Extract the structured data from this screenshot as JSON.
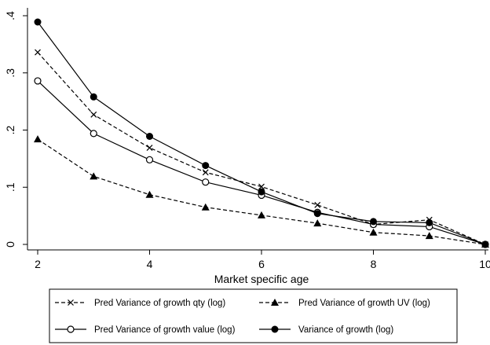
{
  "chart_data": {
    "type": "line",
    "xlabel": "Market specific age",
    "ylabel": "",
    "x": [
      2,
      3,
      4,
      5,
      6,
      7,
      8,
      9,
      10
    ],
    "xlim": [
      2,
      10
    ],
    "ylim": [
      0,
      0.4
    ],
    "xticks": [
      2,
      4,
      6,
      8,
      10
    ],
    "xtick_labels": [
      "2",
      "4",
      "6",
      "8",
      "10"
    ],
    "yticks": [
      0,
      0.1,
      0.2,
      0.3,
      0.4
    ],
    "ytick_labels": [
      "0",
      ".1",
      ".2",
      ".3",
      ".4"
    ],
    "grid": false,
    "legend_position": "bottom",
    "series": [
      {
        "name": "Pred Variance of growth qty (log)",
        "marker": "x",
        "dash": "dashed",
        "color": "#000000",
        "values": [
          0.336,
          0.227,
          0.169,
          0.126,
          0.101,
          0.069,
          0.035,
          0.043,
          0.0
        ]
      },
      {
        "name": "Pred Variance of growth UV (log)",
        "marker": "triangle",
        "dash": "dashed",
        "color": "#000000",
        "values": [
          0.184,
          0.119,
          0.087,
          0.065,
          0.051,
          0.037,
          0.021,
          0.015,
          0.0
        ]
      },
      {
        "name": "Pred Variance of growth value (log)",
        "marker": "hollow-circle",
        "dash": "solid",
        "color": "#000000",
        "values": [
          0.286,
          0.194,
          0.148,
          0.109,
          0.086,
          0.056,
          0.035,
          0.031,
          0.0
        ]
      },
      {
        "name": "Variance of growth (log)",
        "marker": "filled-circle",
        "dash": "solid",
        "color": "#000000",
        "values": [
          0.389,
          0.258,
          0.189,
          0.138,
          0.092,
          0.054,
          0.04,
          0.038,
          0.0
        ]
      }
    ]
  }
}
